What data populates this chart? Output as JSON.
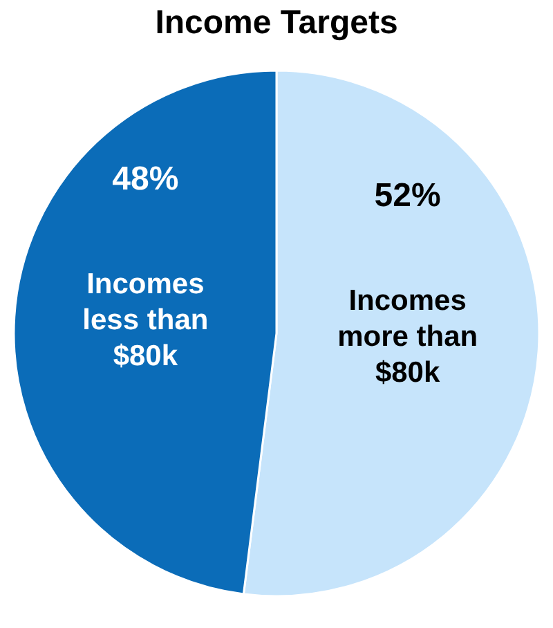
{
  "chart_data": {
    "type": "pie",
    "title": "Income Targets",
    "categories": [
      "Incomes more than $80k",
      "Incomes less than $80k"
    ],
    "values": [
      52,
      48
    ],
    "value_labels": [
      "52%",
      "48%"
    ],
    "colors": [
      "#c6e4fb",
      "#0b6cb8"
    ],
    "legend": false
  }
}
